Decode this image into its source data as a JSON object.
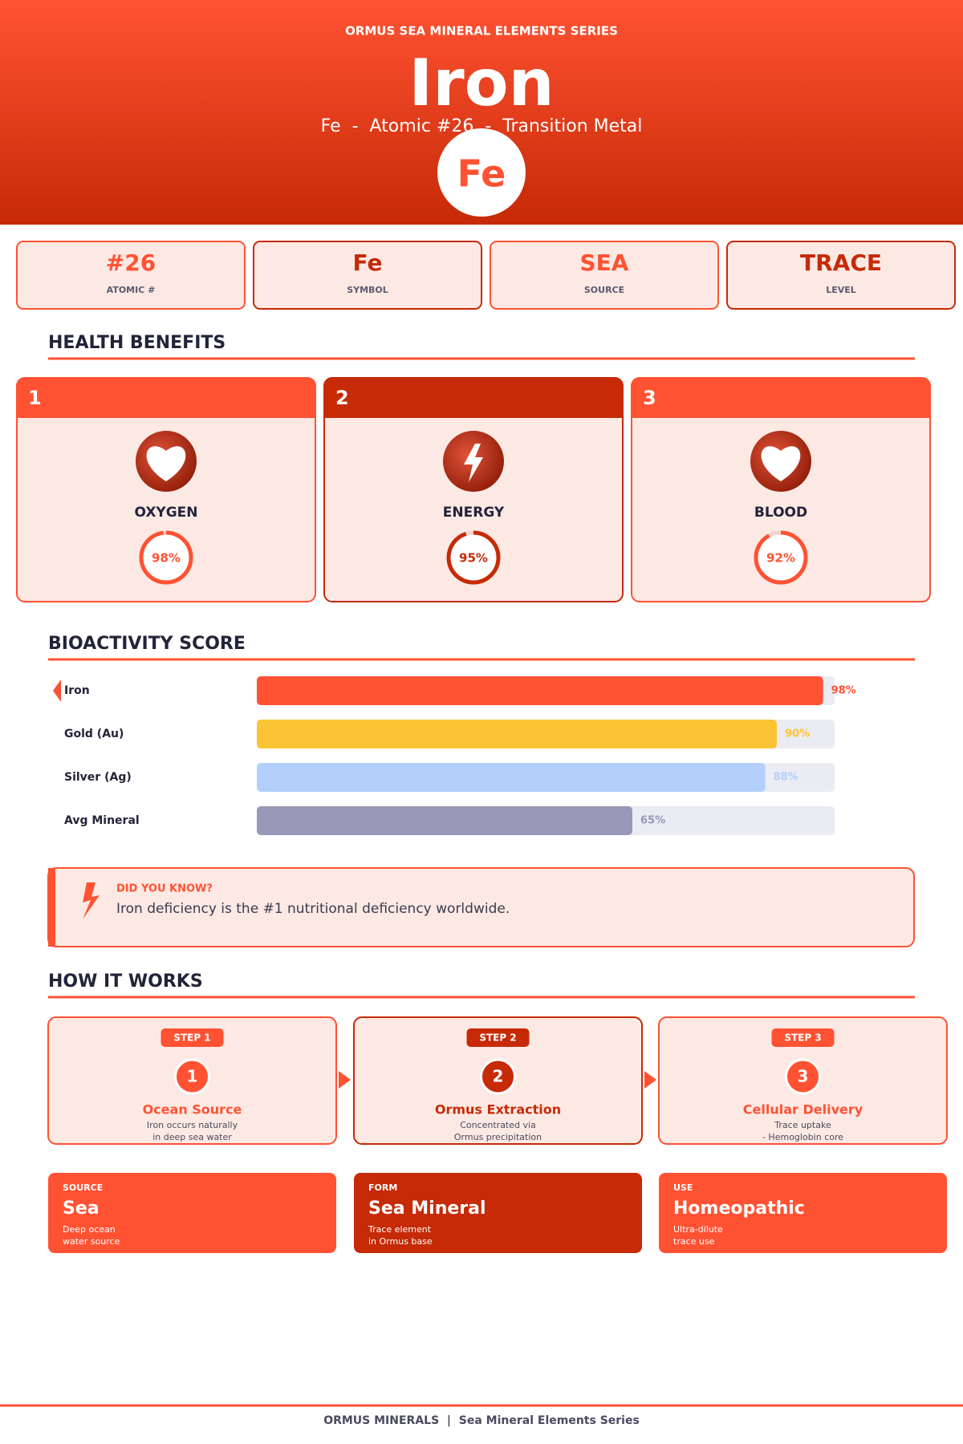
{
  "header": {
    "series": "ORMUS SEA MINERAL ELEMENTS SERIES",
    "title": "Iron",
    "subtitle": "Fe  -  Atomic #26  -  Transition Metal",
    "symbol": "Fe"
  },
  "stats": [
    {
      "value": "#26",
      "label": "ATOMIC #"
    },
    {
      "value": "Fe",
      "label": "SYMBOL"
    },
    {
      "value": "SEA",
      "label": "SOURCE"
    },
    {
      "value": "TRACE",
      "label": "LEVEL"
    }
  ],
  "benefits": {
    "title": "HEALTH BENEFITS",
    "items": [
      {
        "number": "1",
        "name": "OXYGEN",
        "score": 98,
        "score_label": "98%"
      },
      {
        "number": "2",
        "name": "ENERGY",
        "score": 95,
        "score_label": "95%"
      },
      {
        "number": "3",
        "name": "BLOOD",
        "score": 92,
        "score_label": "92%"
      }
    ]
  },
  "bioactivity": {
    "title": "BIOACTIVITY SCORE",
    "categories": [
      "Iron",
      "Gold (Au)",
      "Silver (Ag)",
      "Avg Mineral"
    ],
    "values": [
      98,
      90,
      88,
      65
    ],
    "value_labels": [
      "98%",
      "90%",
      "88%",
      "65%"
    ],
    "colors": [
      "#ff5233",
      "#fcc435",
      "#b3d0fc",
      "#9898b8"
    ],
    "xlim": [
      0,
      100
    ]
  },
  "fact": {
    "title": "DID YOU KNOW?",
    "text": "Iron deficiency is the #1 nutritional deficiency worldwide."
  },
  "how_it_works": {
    "title": "HOW IT WORKS",
    "steps": [
      {
        "step": "STEP 1",
        "number": "1",
        "title": "Ocean Source",
        "lines": [
          "Iron occurs naturally",
          "in deep sea water"
        ]
      },
      {
        "step": "STEP 2",
        "number": "2",
        "title": "Ormus Extraction",
        "lines": [
          "Concentrated via",
          "Ormus precipitation"
        ]
      },
      {
        "step": "STEP 3",
        "number": "3",
        "title": "Cellular Delivery",
        "lines": [
          "Trace uptake",
          "- Hemoglobin core"
        ]
      }
    ]
  },
  "properties": [
    {
      "label": "SOURCE",
      "value": "Sea",
      "lines": [
        "Deep ocean",
        "water source"
      ]
    },
    {
      "label": "FORM",
      "value": "Sea Mineral",
      "lines": [
        "Trace element",
        "in Ormus base"
      ]
    },
    {
      "label": "USE",
      "value": "Homeopathic",
      "lines": [
        "Ultra-dilute",
        "trace use"
      ]
    }
  ],
  "footer": "ORMUS MINERALS  |  Sea Mineral Elements Series"
}
